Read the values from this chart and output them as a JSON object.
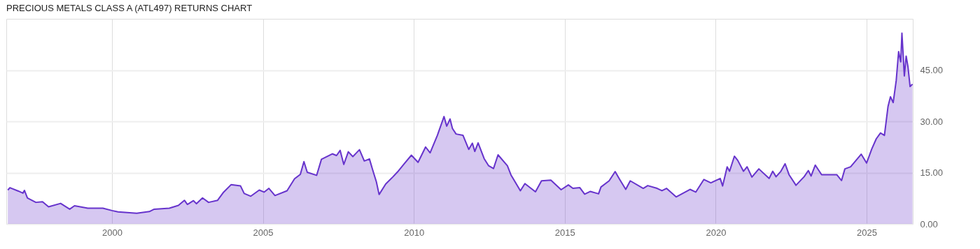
{
  "chart_data": {
    "type": "area",
    "title": "PRECIOUS METALS CLASS A (ATL497) RETURNS CHART",
    "x": [
      1996.55,
      1996.62,
      1996.9,
      1997.05,
      1997.1,
      1997.2,
      1997.48,
      1997.7,
      1997.9,
      1998.3,
      1998.6,
      1998.76,
      1999.2,
      1999.7,
      2000.0,
      2000.2,
      2000.82,
      2001.24,
      2001.4,
      2001.9,
      2002.2,
      2002.4,
      2002.5,
      2002.7,
      2002.8,
      2003.0,
      2003.2,
      2003.5,
      2003.7,
      2003.95,
      2004.26,
      2004.38,
      2004.6,
      2004.88,
      2005.04,
      2005.2,
      2005.4,
      2005.8,
      2006.05,
      2006.24,
      2006.36,
      2006.47,
      2006.78,
      2006.94,
      2007.3,
      2007.44,
      2007.56,
      2007.68,
      2007.83,
      2007.98,
      2008.2,
      2008.36,
      2008.53,
      2008.64,
      2008.76,
      2008.85,
      2009.07,
      2009.3,
      2009.46,
      2009.69,
      2009.92,
      2010.14,
      2010.39,
      2010.54,
      2010.78,
      2011.0,
      2011.09,
      2011.2,
      2011.28,
      2011.4,
      2011.63,
      2011.82,
      2011.94,
      2012.02,
      2012.13,
      2012.33,
      2012.48,
      2012.64,
      2012.79,
      2013.1,
      2013.22,
      2013.41,
      2013.53,
      2013.68,
      2014.03,
      2014.23,
      2014.54,
      2014.88,
      2015.12,
      2015.27,
      2015.5,
      2015.66,
      2015.85,
      2016.12,
      2016.2,
      2016.47,
      2016.67,
      2016.82,
      2017.02,
      2017.17,
      2017.6,
      2017.75,
      2018.06,
      2018.22,
      2018.37,
      2018.69,
      2018.84,
      2019.15,
      2019.34,
      2019.61,
      2019.84,
      2020.15,
      2020.23,
      2020.38,
      2020.46,
      2020.62,
      2020.73,
      2020.92,
      2021.04,
      2021.2,
      2021.43,
      2021.77,
      2021.89,
      2022.0,
      2022.16,
      2022.3,
      2022.43,
      2022.66,
      2022.93,
      2023.07,
      2023.16,
      2023.3,
      2023.51,
      2024.01,
      2024.17,
      2024.28,
      2024.47,
      2024.67,
      2024.82,
      2025.0,
      2025.17,
      2025.32,
      2025.46,
      2025.59,
      2025.71,
      2025.79,
      2025.88,
      2025.98,
      2026.06,
      2026.13,
      2026.17,
      2026.25,
      2026.31,
      2026.37,
      2026.44,
      2026.52
    ],
    "series": [
      {
        "color": "#6633cc",
        "values": [
          9.9,
          10.6,
          9.6,
          9.0,
          9.8,
          7.6,
          6.3,
          6.5,
          5.0,
          6.0,
          4.3,
          5.3,
          4.6,
          4.6,
          3.9,
          3.5,
          3.1,
          3.6,
          4.3,
          4.6,
          5.4,
          6.9,
          5.7,
          6.8,
          5.9,
          7.6,
          6.3,
          6.9,
          9.3,
          11.5,
          11.1,
          8.9,
          8.1,
          9.9,
          9.3,
          10.4,
          8.3,
          9.7,
          13.2,
          14.5,
          18.2,
          15.1,
          14.2,
          18.9,
          20.5,
          20.0,
          21.5,
          17.4,
          21.1,
          19.7,
          21.7,
          18.4,
          19.0,
          15.7,
          12.3,
          8.6,
          11.7,
          13.7,
          15.2,
          17.7,
          20.1,
          18.0,
          22.5,
          20.8,
          25.9,
          31.4,
          28.6,
          30.7,
          27.9,
          26.3,
          25.9,
          21.8,
          23.6,
          21.2,
          23.7,
          19.1,
          17.0,
          16.2,
          20.2,
          17.0,
          14.3,
          11.5,
          9.7,
          11.8,
          9.4,
          12.6,
          12.8,
          10.0,
          11.4,
          10.4,
          10.6,
          8.7,
          9.5,
          8.8,
          10.8,
          12.6,
          15.3,
          13.0,
          10.1,
          12.6,
          10.4,
          11.2,
          10.4,
          9.7,
          10.4,
          7.9,
          8.6,
          10.1,
          9.3,
          13.0,
          12.0,
          13.3,
          11.1,
          16.7,
          15.4,
          19.8,
          18.6,
          15.4,
          16.7,
          13.7,
          16.1,
          13.3,
          15.4,
          13.8,
          15.4,
          17.6,
          14.4,
          11.3,
          13.8,
          15.6,
          14.0,
          17.2,
          14.4,
          14.4,
          12.7,
          16.1,
          16.7,
          18.8,
          20.4,
          17.8,
          21.9,
          24.9,
          26.6,
          25.9,
          34.4,
          37.2,
          35.5,
          41.9,
          50.4,
          47.4,
          55.8,
          43.3,
          49.1,
          46.0,
          40.2,
          40.9
        ]
      }
    ],
    "xlim": [
      1996.5,
      2026.53
    ],
    "xticks": [
      2000,
      2005,
      2010,
      2015,
      2020,
      2025
    ],
    "ylim": [
      0,
      60
    ],
    "yticks": [
      {
        "value": 0,
        "label": "0.00"
      },
      {
        "value": 15,
        "label": "15.00"
      },
      {
        "value": 30,
        "label": "30.00"
      },
      {
        "value": 45,
        "label": "45.00"
      }
    ],
    "grid": true
  }
}
